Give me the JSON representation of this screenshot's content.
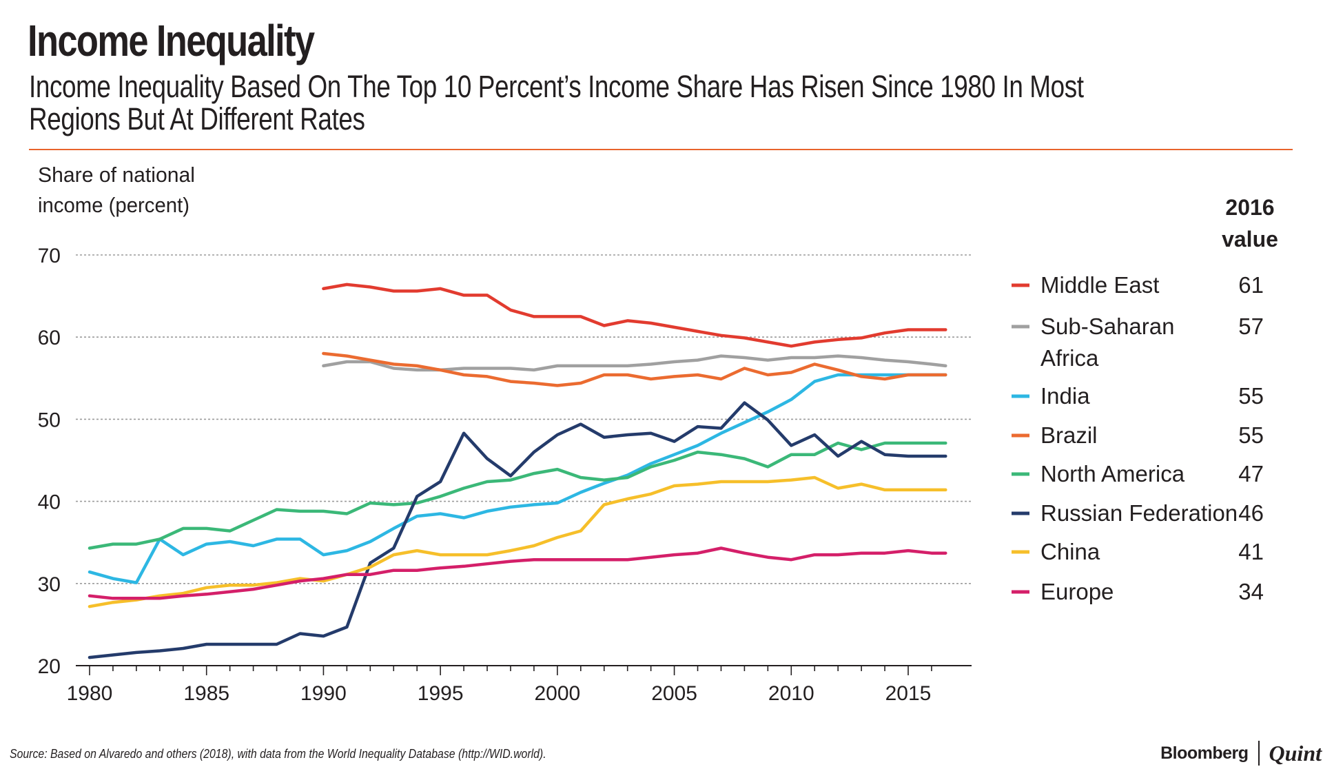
{
  "title": "Income Inequality",
  "subtitle": "Income Inequality Based On The Top 10 Percent’s Income Share Has Risen Since 1980 In Most Regions But At Different Rates",
  "source": "Source: Based on Alvaredo and others (2018), with data from the World Inequality Database (http://WID.world).",
  "brand": {
    "name": "Bloomberg",
    "suffix": "Quint"
  },
  "colors": {
    "rule": "#e8632c",
    "grid": "#9a9a9a",
    "axis": "#231f20"
  },
  "chart_data": {
    "type": "line",
    "ylabel_lines": [
      "Share of national",
      "income (percent)"
    ],
    "ylim": [
      20,
      70
    ],
    "xlim": [
      1980,
      2016
    ],
    "yticks": [
      20,
      30,
      40,
      50,
      60,
      70
    ],
    "xticks": [
      1980,
      1985,
      1990,
      1995,
      2000,
      2005,
      2010,
      2015
    ],
    "grid": "horizontal dotted",
    "legend_header": [
      "2016",
      "value"
    ],
    "legend_position": "right",
    "series": [
      {
        "name": "Middle East",
        "value_label": "61",
        "color": "#e23b2f",
        "points": [
          [
            1990,
            65.9
          ],
          [
            1991,
            66.4
          ],
          [
            1992,
            66.1
          ],
          [
            1993,
            65.6
          ],
          [
            1994,
            65.6
          ],
          [
            1995,
            65.9
          ],
          [
            1996,
            65.1
          ],
          [
            1997,
            65.1
          ],
          [
            1998,
            63.3
          ],
          [
            1999,
            62.5
          ],
          [
            2000,
            62.5
          ],
          [
            2001,
            62.5
          ],
          [
            2002,
            61.4
          ],
          [
            2003,
            62.0
          ],
          [
            2004,
            61.7
          ],
          [
            2005,
            61.2
          ],
          [
            2006,
            60.7
          ],
          [
            2007,
            60.2
          ],
          [
            2008,
            59.9
          ],
          [
            2009,
            59.4
          ],
          [
            2010,
            58.9
          ],
          [
            2011,
            59.4
          ],
          [
            2012,
            59.7
          ],
          [
            2013,
            59.9
          ],
          [
            2014,
            60.5
          ],
          [
            2015,
            60.9
          ],
          [
            2016,
            60.9
          ],
          [
            2016.6,
            60.9
          ]
        ]
      },
      {
        "name": "Sub-Saharan Africa",
        "name_lines": [
          "Sub-Saharan",
          "Africa"
        ],
        "value_label": "57",
        "color": "#a0a0a0",
        "points": [
          [
            1990,
            56.5
          ],
          [
            1991,
            57.0
          ],
          [
            1992,
            57.0
          ],
          [
            1993,
            56.2
          ],
          [
            1994,
            56.0
          ],
          [
            1995,
            56.0
          ],
          [
            1996,
            56.2
          ],
          [
            1997,
            56.2
          ],
          [
            1998,
            56.2
          ],
          [
            1999,
            56.0
          ],
          [
            2000,
            56.5
          ],
          [
            2001,
            56.5
          ],
          [
            2002,
            56.5
          ],
          [
            2003,
            56.5
          ],
          [
            2004,
            56.7
          ],
          [
            2005,
            57.0
          ],
          [
            2006,
            57.2
          ],
          [
            2007,
            57.7
          ],
          [
            2008,
            57.5
          ],
          [
            2009,
            57.2
          ],
          [
            2010,
            57.5
          ],
          [
            2011,
            57.5
          ],
          [
            2012,
            57.7
          ],
          [
            2013,
            57.5
          ],
          [
            2014,
            57.2
          ],
          [
            2015,
            57.0
          ],
          [
            2016,
            56.7
          ],
          [
            2016.6,
            56.5
          ]
        ]
      },
      {
        "name": "India",
        "value_label": "55",
        "color": "#2db7e3",
        "points": [
          [
            1980,
            31.4
          ],
          [
            1981,
            30.6
          ],
          [
            1982,
            30.1
          ],
          [
            1983,
            35.4
          ],
          [
            1984,
            33.5
          ],
          [
            1985,
            34.8
          ],
          [
            1986,
            35.1
          ],
          [
            1987,
            34.6
          ],
          [
            1988,
            35.4
          ],
          [
            1989,
            35.4
          ],
          [
            1990,
            33.5
          ],
          [
            1991,
            34.0
          ],
          [
            1992,
            35.1
          ],
          [
            1993,
            36.7
          ],
          [
            1994,
            38.2
          ],
          [
            1995,
            38.5
          ],
          [
            1996,
            38.0
          ],
          [
            1997,
            38.8
          ],
          [
            1998,
            39.3
          ],
          [
            1999,
            39.6
          ],
          [
            2000,
            39.8
          ],
          [
            2001,
            41.1
          ],
          [
            2002,
            42.2
          ],
          [
            2003,
            43.2
          ],
          [
            2004,
            44.6
          ],
          [
            2005,
            45.7
          ],
          [
            2006,
            46.8
          ],
          [
            2007,
            48.3
          ],
          [
            2008,
            49.6
          ],
          [
            2009,
            50.9
          ],
          [
            2010,
            52.4
          ],
          [
            2011,
            54.6
          ],
          [
            2012,
            55.4
          ],
          [
            2013,
            55.4
          ],
          [
            2014,
            55.4
          ],
          [
            2015,
            55.4
          ],
          [
            2016,
            55.4
          ],
          [
            2016.6,
            55.4
          ]
        ]
      },
      {
        "name": "Brazil",
        "value_label": "55",
        "color": "#eb6b30",
        "points": [
          [
            1990,
            58.0
          ],
          [
            1991,
            57.7
          ],
          [
            1992,
            57.2
          ],
          [
            1993,
            56.7
          ],
          [
            1994,
            56.5
          ],
          [
            1995,
            56.0
          ],
          [
            1996,
            55.4
          ],
          [
            1997,
            55.2
          ],
          [
            1998,
            54.6
          ],
          [
            1999,
            54.4
          ],
          [
            2000,
            54.1
          ],
          [
            2001,
            54.4
          ],
          [
            2002,
            55.4
          ],
          [
            2003,
            55.4
          ],
          [
            2004,
            54.9
          ],
          [
            2005,
            55.2
          ],
          [
            2006,
            55.4
          ],
          [
            2007,
            54.9
          ],
          [
            2008,
            56.2
          ],
          [
            2009,
            55.4
          ],
          [
            2010,
            55.7
          ],
          [
            2011,
            56.7
          ],
          [
            2012,
            56.0
          ],
          [
            2013,
            55.2
          ],
          [
            2014,
            54.9
          ],
          [
            2015,
            55.4
          ],
          [
            2016,
            55.4
          ],
          [
            2016.6,
            55.4
          ]
        ]
      },
      {
        "name": "North America",
        "value_label": "47",
        "color": "#3bb878",
        "points": [
          [
            1980,
            34.3
          ],
          [
            1981,
            34.8
          ],
          [
            1982,
            34.8
          ],
          [
            1983,
            35.4
          ],
          [
            1984,
            36.7
          ],
          [
            1985,
            36.7
          ],
          [
            1986,
            36.4
          ],
          [
            1987,
            37.7
          ],
          [
            1988,
            39.0
          ],
          [
            1989,
            38.8
          ],
          [
            1990,
            38.8
          ],
          [
            1991,
            38.5
          ],
          [
            1992,
            39.8
          ],
          [
            1993,
            39.6
          ],
          [
            1994,
            39.8
          ],
          [
            1995,
            40.6
          ],
          [
            1996,
            41.6
          ],
          [
            1997,
            42.4
          ],
          [
            1998,
            42.6
          ],
          [
            1999,
            43.4
          ],
          [
            2000,
            43.9
          ],
          [
            2001,
            42.9
          ],
          [
            2002,
            42.6
          ],
          [
            2003,
            42.9
          ],
          [
            2004,
            44.2
          ],
          [
            2005,
            45.0
          ],
          [
            2006,
            46.0
          ],
          [
            2007,
            45.7
          ],
          [
            2008,
            45.2
          ],
          [
            2009,
            44.2
          ],
          [
            2010,
            45.7
          ],
          [
            2011,
            45.7
          ],
          [
            2012,
            47.1
          ],
          [
            2013,
            46.3
          ],
          [
            2014,
            47.1
          ],
          [
            2015,
            47.1
          ],
          [
            2016,
            47.1
          ],
          [
            2016.6,
            47.1
          ]
        ]
      },
      {
        "name": "Russian Federation",
        "value_label": "46",
        "color": "#243b6b",
        "points": [
          [
            1980,
            21.0
          ],
          [
            1981,
            21.3
          ],
          [
            1982,
            21.6
          ],
          [
            1983,
            21.8
          ],
          [
            1984,
            22.1
          ],
          [
            1985,
            22.6
          ],
          [
            1986,
            22.6
          ],
          [
            1987,
            22.6
          ],
          [
            1988,
            22.6
          ],
          [
            1989,
            23.9
          ],
          [
            1990,
            23.6
          ],
          [
            1991,
            24.7
          ],
          [
            1992,
            32.5
          ],
          [
            1993,
            34.3
          ],
          [
            1994,
            40.6
          ],
          [
            1995,
            42.4
          ],
          [
            1996,
            48.3
          ],
          [
            1997,
            45.2
          ],
          [
            1998,
            43.1
          ],
          [
            1999,
            46.0
          ],
          [
            2000,
            48.1
          ],
          [
            2001,
            49.4
          ],
          [
            2002,
            47.8
          ],
          [
            2003,
            48.1
          ],
          [
            2004,
            48.3
          ],
          [
            2005,
            47.3
          ],
          [
            2006,
            49.1
          ],
          [
            2007,
            48.9
          ],
          [
            2008,
            52.0
          ],
          [
            2009,
            49.9
          ],
          [
            2010,
            46.8
          ],
          [
            2011,
            48.1
          ],
          [
            2012,
            45.5
          ],
          [
            2013,
            47.3
          ],
          [
            2014,
            45.7
          ],
          [
            2015,
            45.5
          ],
          [
            2016,
            45.5
          ],
          [
            2016.6,
            45.5
          ]
        ]
      },
      {
        "name": "China",
        "value_label": "41",
        "color": "#f6bf2a",
        "points": [
          [
            1980,
            27.2
          ],
          [
            1981,
            27.7
          ],
          [
            1982,
            28.0
          ],
          [
            1983,
            28.5
          ],
          [
            1984,
            28.8
          ],
          [
            1985,
            29.5
          ],
          [
            1986,
            29.8
          ],
          [
            1987,
            29.8
          ],
          [
            1988,
            30.1
          ],
          [
            1989,
            30.6
          ],
          [
            1990,
            30.3
          ],
          [
            1991,
            31.1
          ],
          [
            1992,
            32.0
          ],
          [
            1993,
            33.5
          ],
          [
            1994,
            34.0
          ],
          [
            1995,
            33.5
          ],
          [
            1996,
            33.5
          ],
          [
            1997,
            33.5
          ],
          [
            1998,
            34.0
          ],
          [
            1999,
            34.6
          ],
          [
            2000,
            35.6
          ],
          [
            2001,
            36.4
          ],
          [
            2002,
            39.6
          ],
          [
            2003,
            40.3
          ],
          [
            2004,
            40.9
          ],
          [
            2005,
            41.9
          ],
          [
            2006,
            42.1
          ],
          [
            2007,
            42.4
          ],
          [
            2008,
            42.4
          ],
          [
            2009,
            42.4
          ],
          [
            2010,
            42.6
          ],
          [
            2011,
            42.9
          ],
          [
            2012,
            41.6
          ],
          [
            2013,
            42.1
          ],
          [
            2014,
            41.4
          ],
          [
            2015,
            41.4
          ],
          [
            2016,
            41.4
          ],
          [
            2016.6,
            41.4
          ]
        ]
      },
      {
        "name": "Europe",
        "value_label": "34",
        "color": "#d41f69",
        "points": [
          [
            1980,
            28.5
          ],
          [
            1981,
            28.2
          ],
          [
            1982,
            28.2
          ],
          [
            1983,
            28.2
          ],
          [
            1984,
            28.5
          ],
          [
            1985,
            28.7
          ],
          [
            1986,
            29.0
          ],
          [
            1987,
            29.3
          ],
          [
            1988,
            29.8
          ],
          [
            1989,
            30.3
          ],
          [
            1990,
            30.6
          ],
          [
            1991,
            31.1
          ],
          [
            1992,
            31.1
          ],
          [
            1993,
            31.6
          ],
          [
            1994,
            31.6
          ],
          [
            1995,
            31.9
          ],
          [
            1996,
            32.1
          ],
          [
            1997,
            32.4
          ],
          [
            1998,
            32.7
          ],
          [
            1999,
            32.9
          ],
          [
            2000,
            32.9
          ],
          [
            2001,
            32.9
          ],
          [
            2002,
            32.9
          ],
          [
            2003,
            32.9
          ],
          [
            2004,
            33.2
          ],
          [
            2005,
            33.5
          ],
          [
            2006,
            33.7
          ],
          [
            2007,
            34.3
          ],
          [
            2008,
            33.7
          ],
          [
            2009,
            33.2
          ],
          [
            2010,
            32.9
          ],
          [
            2011,
            33.5
          ],
          [
            2012,
            33.5
          ],
          [
            2013,
            33.7
          ],
          [
            2014,
            33.7
          ],
          [
            2015,
            34.0
          ],
          [
            2016,
            33.7
          ],
          [
            2016.6,
            33.7
          ]
        ]
      }
    ]
  }
}
